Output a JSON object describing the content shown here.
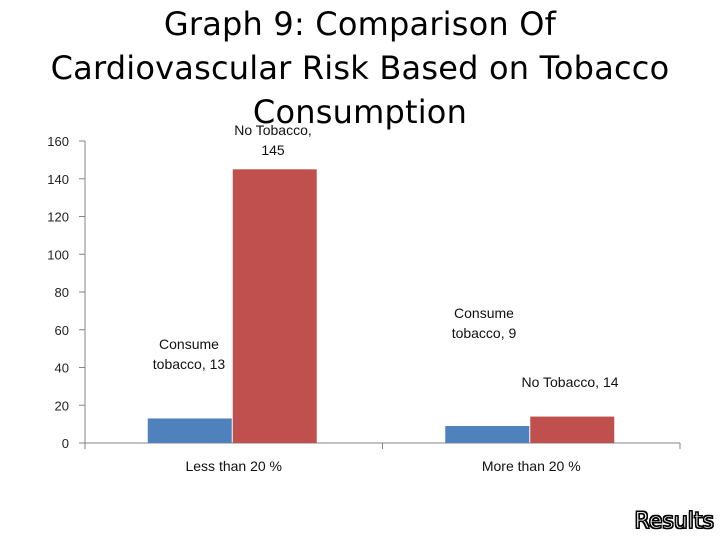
{
  "chart_data": {
    "type": "bar",
    "title_lines": [
      "Graph 9: Comparison Of",
      "Cardiovascular Risk Based on Tobacco",
      "Consumption"
    ],
    "categories": [
      "Less than 20 %",
      "More than 20 %"
    ],
    "series": [
      {
        "name": "Consume tobacco",
        "color": "#4F81BD",
        "values": [
          13,
          9
        ]
      },
      {
        "name": "No Tobacco",
        "color": "#C0504D",
        "values": [
          145,
          14
        ]
      }
    ],
    "data_labels": [
      [
        "Consume tobacco, 13",
        "No Tobacco, 145"
      ],
      [
        "Consume tobacco, 9",
        "No Tobacco, 14"
      ]
    ],
    "y_ticks": [
      0,
      20,
      40,
      60,
      80,
      100,
      120,
      140,
      160
    ],
    "ylim": [
      0,
      160
    ],
    "xlabel": "",
    "ylabel": "",
    "grid": false,
    "legend": "none"
  },
  "footer": {
    "label": "Results"
  }
}
